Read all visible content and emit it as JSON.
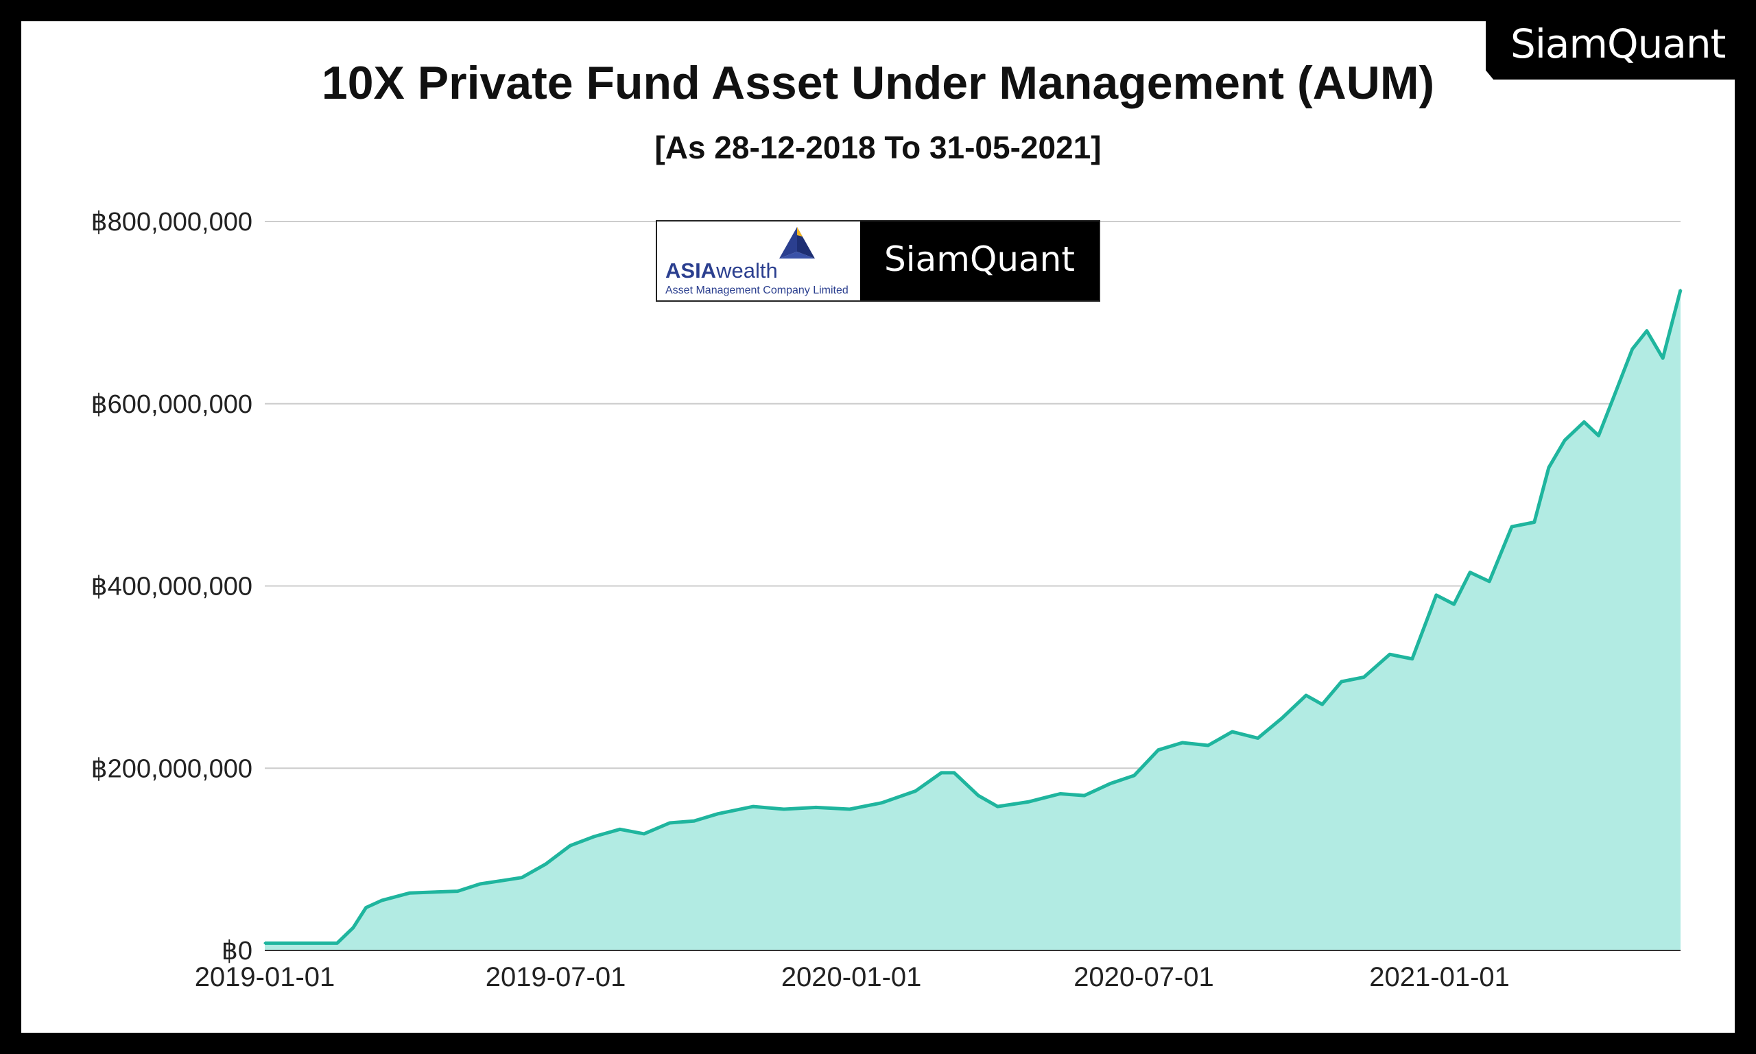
{
  "brand": {
    "corner_logo": "SiamQuant",
    "box_left_name_bold": "ASIA",
    "box_left_name": "wealth",
    "box_left_sub": "Asset Management Company Limited",
    "box_right_name": "SiamQuant"
  },
  "colors": {
    "line": "#1fb59e",
    "fill": "#b2ebe3",
    "grid": "#cccccc",
    "frame": "#000000",
    "brand_blue": "#2b3f8f",
    "brand_gold": "#f0b323"
  },
  "chart_data": {
    "type": "area",
    "title": "10X Private Fund Asset Under Management (AUM)",
    "subtitle": "[As 28-12-2018 To 31-05-2021]",
    "xlabel": "",
    "ylabel": "",
    "ylim": [
      0,
      800000000
    ],
    "yticks": [
      0,
      200000000,
      400000000,
      600000000,
      800000000
    ],
    "ytick_labels": [
      "฿0",
      "฿200,000,000",
      "฿400,000,000",
      "฿600,000,000",
      "฿800,000,000"
    ],
    "xlim": [
      "2019-01-01",
      "2021-05-31"
    ],
    "xticks": [
      "2019-01-01",
      "2019-07-01",
      "2020-01-01",
      "2020-07-01",
      "2021-01-01"
    ],
    "xtick_labels": [
      "2019-01-01",
      "2019-07-01",
      "2020-01-01",
      "2020-07-01",
      "2021-01-01"
    ],
    "grid": "horizontal",
    "legend": "none",
    "series": [
      {
        "x": [
          "2019-01-01",
          "2019-02-15",
          "2019-02-25",
          "2019-03-05",
          "2019-03-15",
          "2019-04-01",
          "2019-04-15",
          "2019-05-01",
          "2019-05-15",
          "2019-05-30",
          "2019-06-10",
          "2019-06-25",
          "2019-07-10",
          "2019-07-25",
          "2019-08-10",
          "2019-08-25",
          "2019-09-10",
          "2019-09-25",
          "2019-10-10",
          "2019-11-01",
          "2019-11-20",
          "2019-12-10",
          "2019-12-31",
          "2020-01-20",
          "2020-02-10",
          "2020-02-26",
          "2020-03-05",
          "2020-03-20",
          "2020-04-01",
          "2020-04-20",
          "2020-05-10",
          "2020-05-25",
          "2020-06-10",
          "2020-06-25",
          "2020-07-10",
          "2020-07-25",
          "2020-08-10",
          "2020-08-25",
          "2020-09-10",
          "2020-09-25",
          "2020-10-10",
          "2020-10-20",
          "2020-11-01",
          "2020-11-15",
          "2020-12-01",
          "2020-12-15",
          "2020-12-30",
          "2021-01-10",
          "2021-01-20",
          "2021-02-01",
          "2021-02-15",
          "2021-03-01",
          "2021-03-10",
          "2021-03-20",
          "2021-04-01",
          "2021-04-10",
          "2021-04-20",
          "2021-05-01",
          "2021-05-10",
          "2021-05-20",
          "2021-05-31"
        ],
        "y": [
          8000000,
          8000000,
          25000000,
          47000000,
          55000000,
          63000000,
          64000000,
          65000000,
          73000000,
          77000000,
          80000000,
          95000000,
          115000000,
          125000000,
          133000000,
          128000000,
          140000000,
          142000000,
          150000000,
          158000000,
          155000000,
          157000000,
          155000000,
          162000000,
          175000000,
          195000000,
          195000000,
          170000000,
          158000000,
          163000000,
          172000000,
          170000000,
          183000000,
          192000000,
          220000000,
          228000000,
          225000000,
          240000000,
          233000000,
          255000000,
          280000000,
          270000000,
          295000000,
          300000000,
          325000000,
          320000000,
          390000000,
          380000000,
          415000000,
          405000000,
          465000000,
          470000000,
          530000000,
          560000000,
          580000000,
          565000000,
          610000000,
          660000000,
          680000000,
          650000000,
          725000000
        ]
      }
    ]
  }
}
